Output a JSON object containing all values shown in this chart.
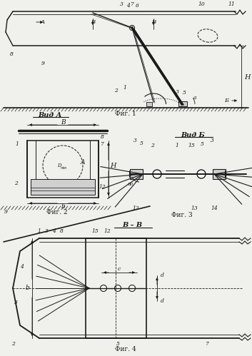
{
  "bg_color": "#f0f0ec",
  "lc": "#1a1a1a",
  "fig1_caption": "Фиг. 1",
  "fig2_caption": "Фиг. 2",
  "fig3_caption": "Фиг. 3",
  "fig4_caption": "Фиг. 4",
  "vid_a_label": "Вид А",
  "vid_b_label": "Вид Б",
  "bb_label": "В – В"
}
